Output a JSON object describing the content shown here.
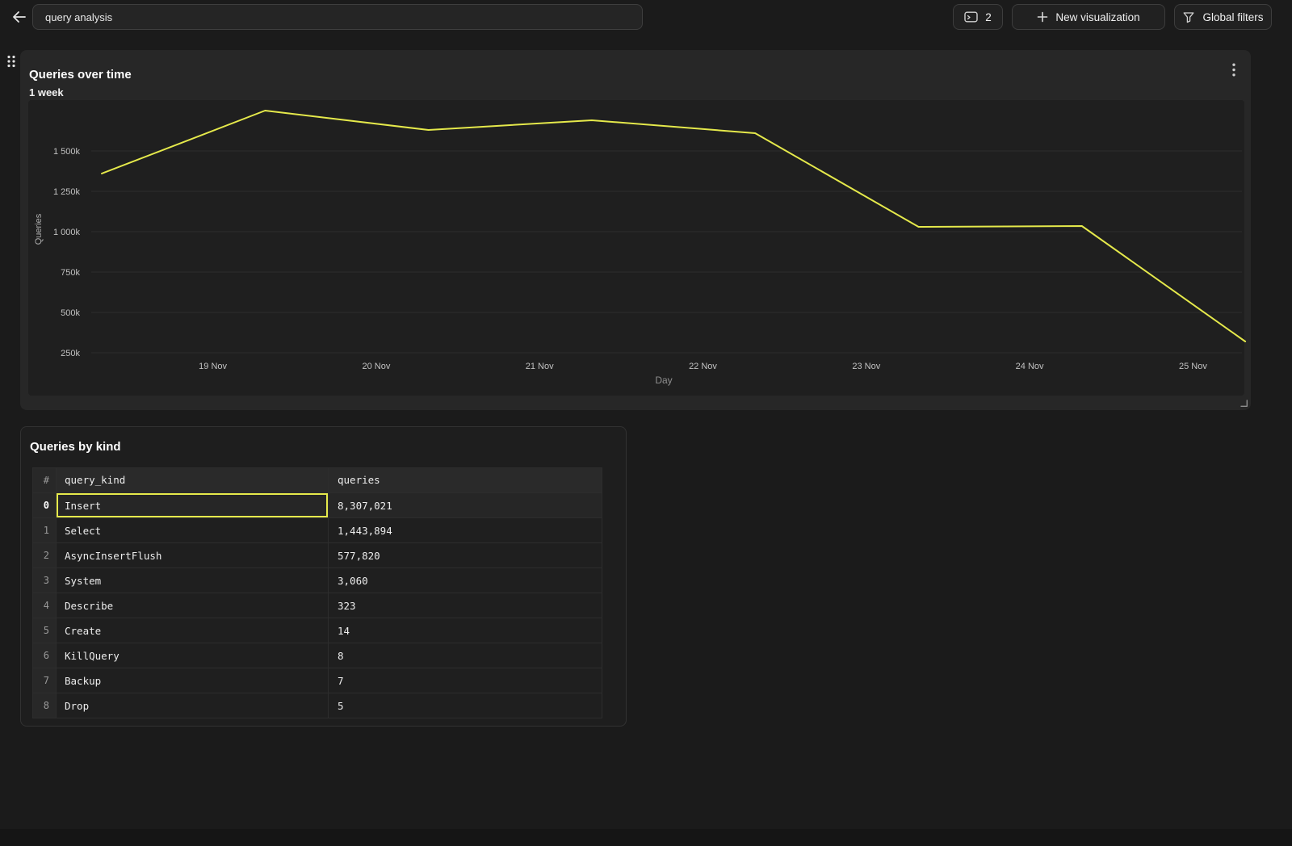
{
  "colors": {
    "accent_yellow": "#e5e94b",
    "page_background": "#1b1b1b",
    "chart_card_background": "#272727",
    "plot_background": "#1f1f1f",
    "gridline": "#2d2d2d",
    "tick_label": "#c2c2c2"
  },
  "topbar": {
    "back_icon": "arrow-left",
    "title_value": "query analysis",
    "tab_count_button": {
      "icon": "console-window",
      "label": "2"
    },
    "new_visualization_button": {
      "icon": "plus",
      "label": "New visualization"
    },
    "global_filters_button": {
      "icon": "funnel",
      "label": "Global filters"
    }
  },
  "chart_card": {
    "title": "Queries over time",
    "subtitle": "1 week",
    "menu_icon": "kebab-menu",
    "drag_icon": "drag-dots",
    "resize_icon": "resize-corner"
  },
  "chart_data": {
    "type": "line",
    "title": "Queries over time",
    "subtitle": "1 week",
    "xlabel": "Day",
    "ylabel": "Queries",
    "grid": true,
    "legend": "none",
    "x_ticks": [
      {
        "label": "19 Nov",
        "day": 0.68
      },
      {
        "label": "20 Nov",
        "day": 1.68
      },
      {
        "label": "21 Nov",
        "day": 2.68
      },
      {
        "label": "22 Nov",
        "day": 3.68
      },
      {
        "label": "23 Nov",
        "day": 4.68
      },
      {
        "label": "24 Nov",
        "day": 5.68
      },
      {
        "label": "25 Nov",
        "day": 6.68
      }
    ],
    "y_ticks": [
      {
        "label": "1 500k",
        "value": 1500000
      },
      {
        "label": "1 250k",
        "value": 1250000
      },
      {
        "label": "1 000k",
        "value": 1000000
      },
      {
        "label": "750k",
        "value": 750000
      },
      {
        "label": "500k",
        "value": 500000
      },
      {
        "label": "250k",
        "value": 250000
      }
    ],
    "ylim": [
      200000,
      1820000
    ],
    "series": [
      {
        "name": "Queries",
        "color": "#e5e94b",
        "points": [
          {
            "day": 0,
            "value": 1360000
          },
          {
            "day": 1,
            "value": 1750000
          },
          {
            "day": 2,
            "value": 1630000
          },
          {
            "day": 3,
            "value": 1690000
          },
          {
            "day": 4,
            "value": 1610000
          },
          {
            "day": 5,
            "value": 1030000
          },
          {
            "day": 6,
            "value": 1035000
          },
          {
            "day": 7,
            "value": 320000
          }
        ]
      }
    ]
  },
  "table_card": {
    "title": "Queries by kind",
    "columns": [
      "#",
      "query_kind",
      "queries"
    ],
    "rows": [
      {
        "index": 0,
        "query_kind": "Insert",
        "queries": "8,307,021",
        "selected": true
      },
      {
        "index": 1,
        "query_kind": "Select",
        "queries": "1,443,894",
        "selected": false
      },
      {
        "index": 2,
        "query_kind": "AsyncInsertFlush",
        "queries": "577,820",
        "selected": false
      },
      {
        "index": 3,
        "query_kind": "System",
        "queries": "3,060",
        "selected": false
      },
      {
        "index": 4,
        "query_kind": "Describe",
        "queries": "323",
        "selected": false
      },
      {
        "index": 5,
        "query_kind": "Create",
        "queries": "14",
        "selected": false
      },
      {
        "index": 6,
        "query_kind": "KillQuery",
        "queries": "8",
        "selected": false
      },
      {
        "index": 7,
        "query_kind": "Backup",
        "queries": "7",
        "selected": false
      },
      {
        "index": 8,
        "query_kind": "Drop",
        "queries": "5",
        "selected": false
      }
    ],
    "selection": {
      "row": 0,
      "column": "query_kind"
    }
  }
}
